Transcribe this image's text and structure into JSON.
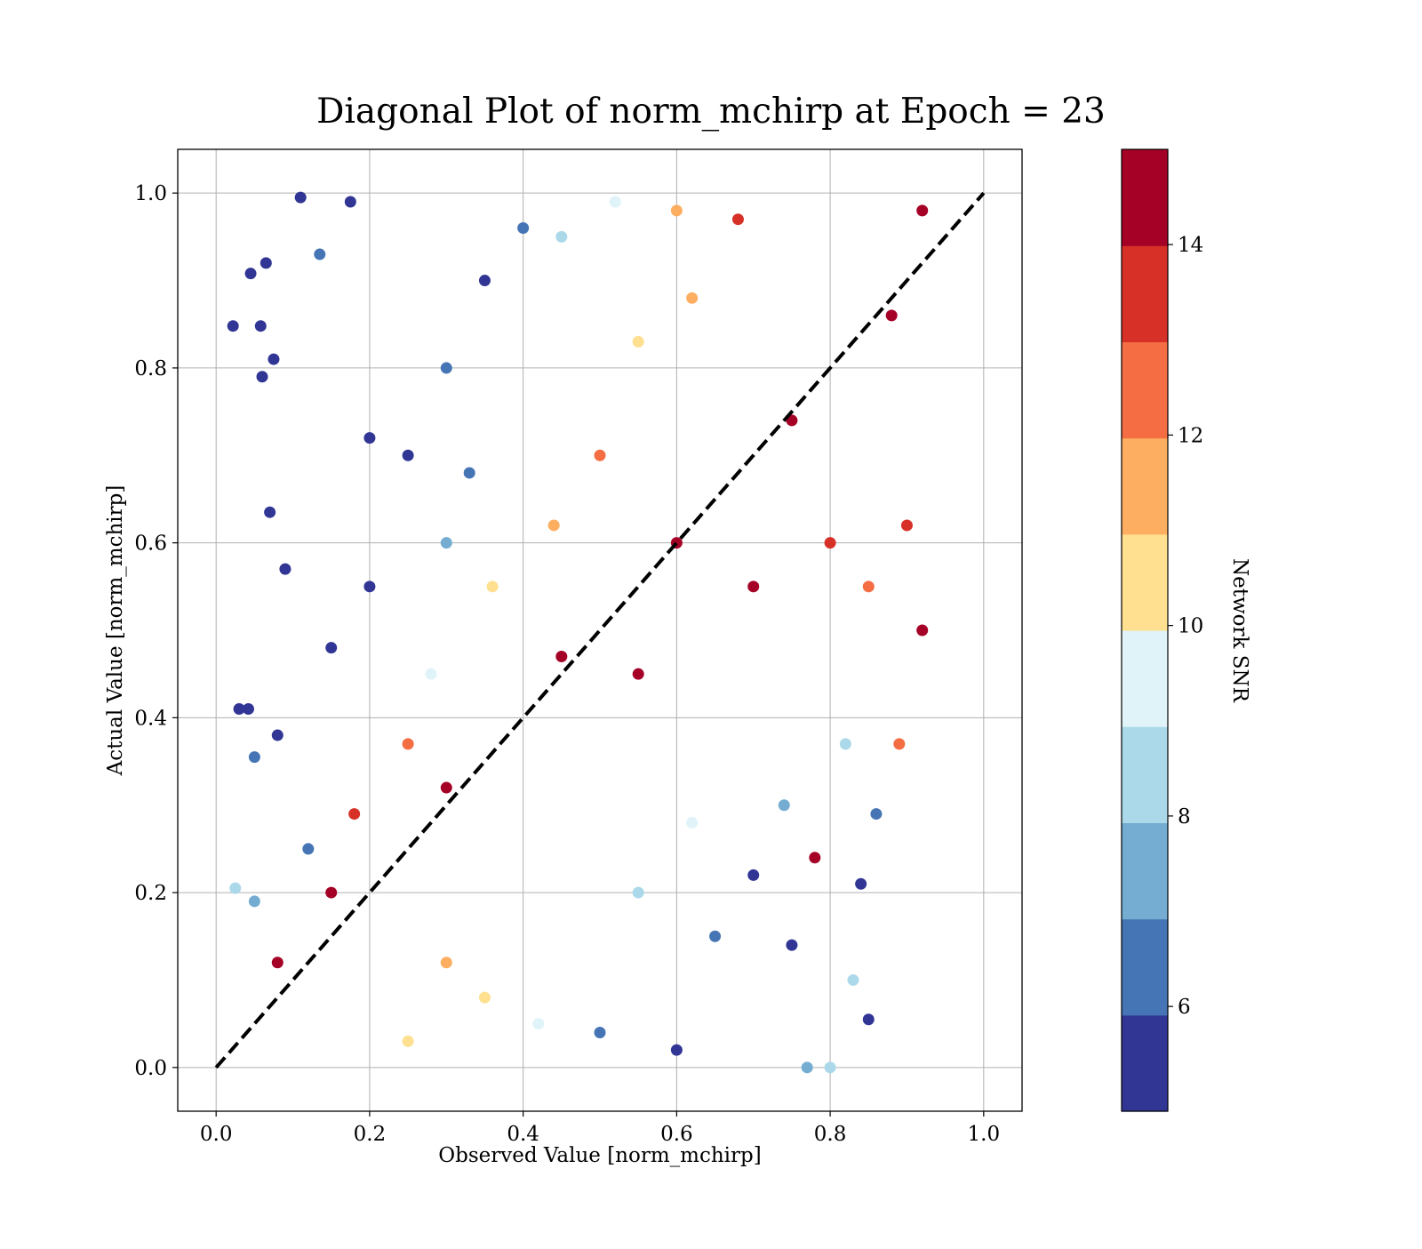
{
  "chart_data": {
    "type": "scatter",
    "title": "Diagonal Plot of norm_mchirp at Epoch = 23",
    "xlabel": "Observed Value [norm_mchirp]",
    "ylabel": "Actual Value [norm_mchirp]",
    "xlim": [
      -0.05,
      1.05
    ],
    "ylim": [
      -0.05,
      1.05
    ],
    "x_ticks": [
      0.0,
      0.2,
      0.4,
      0.6,
      0.8,
      1.0
    ],
    "x_tick_labels": [
      "0.0",
      "0.2",
      "0.4",
      "0.6",
      "0.8",
      "1.0"
    ],
    "y_ticks": [
      0.0,
      0.2,
      0.4,
      0.6,
      0.8,
      1.0
    ],
    "y_tick_labels": [
      "0.0",
      "0.2",
      "0.4",
      "0.6",
      "0.8",
      "1.0"
    ],
    "grid": true,
    "reference_line": {
      "x": [
        0.0,
        1.0
      ],
      "y": [
        0.0,
        1.0
      ],
      "style": "dashed",
      "color": "#000000"
    },
    "colorbar": {
      "label": "Network SNR",
      "range": [
        4.9,
        15.0
      ],
      "ticks": [
        6,
        8,
        10,
        12,
        14
      ],
      "tick_labels": [
        "6",
        "8",
        "10",
        "12",
        "14"
      ],
      "colors": [
        "#313695",
        "#4575b4",
        "#74add1",
        "#abd9e9",
        "#e0f3f8",
        "#fee090",
        "#fdae61",
        "#f46d43",
        "#d73027",
        "#a50026"
      ]
    },
    "series": [
      {
        "color_by": "Network SNR",
        "points": [
          {
            "x": 0.022,
            "y": 0.848,
            "snr": 5.2
          },
          {
            "x": 0.045,
            "y": 0.908,
            "snr": 5.4
          },
          {
            "x": 0.058,
            "y": 0.848,
            "snr": 5.1
          },
          {
            "x": 0.065,
            "y": 0.92,
            "snr": 5.3
          },
          {
            "x": 0.11,
            "y": 0.995,
            "snr": 5.2
          },
          {
            "x": 0.135,
            "y": 0.93,
            "snr": 6.0
          },
          {
            "x": 0.175,
            "y": 0.99,
            "snr": 5.5
          },
          {
            "x": 0.075,
            "y": 0.81,
            "snr": 5.3
          },
          {
            "x": 0.06,
            "y": 0.79,
            "snr": 5.6
          },
          {
            "x": 0.07,
            "y": 0.635,
            "snr": 5.8
          },
          {
            "x": 0.09,
            "y": 0.57,
            "snr": 5.4
          },
          {
            "x": 0.03,
            "y": 0.41,
            "snr": 5.2
          },
          {
            "x": 0.042,
            "y": 0.41,
            "snr": 5.4
          },
          {
            "x": 0.08,
            "y": 0.38,
            "snr": 5.7
          },
          {
            "x": 0.025,
            "y": 0.205,
            "snr": 8.4
          },
          {
            "x": 0.05,
            "y": 0.355,
            "snr": 6.4
          },
          {
            "x": 0.05,
            "y": 0.19,
            "snr": 7.2
          },
          {
            "x": 0.12,
            "y": 0.25,
            "snr": 6.0
          },
          {
            "x": 0.15,
            "y": 0.48,
            "snr": 5.5
          },
          {
            "x": 0.2,
            "y": 0.55,
            "snr": 5.8
          },
          {
            "x": 0.25,
            "y": 0.7,
            "snr": 5.3
          },
          {
            "x": 0.3,
            "y": 0.8,
            "snr": 6.2
          },
          {
            "x": 0.35,
            "y": 0.9,
            "snr": 5.7
          },
          {
            "x": 0.4,
            "y": 0.96,
            "snr": 6.8
          },
          {
            "x": 0.45,
            "y": 0.95,
            "snr": 8.8
          },
          {
            "x": 0.52,
            "y": 0.99,
            "snr": 9.8
          },
          {
            "x": 0.6,
            "y": 0.98,
            "snr": 11.5
          },
          {
            "x": 0.68,
            "y": 0.97,
            "snr": 13.0
          },
          {
            "x": 0.3,
            "y": 0.6,
            "snr": 7.0
          },
          {
            "x": 0.33,
            "y": 0.68,
            "snr": 6.5
          },
          {
            "x": 0.2,
            "y": 0.72,
            "snr": 5.6
          },
          {
            "x": 0.28,
            "y": 0.45,
            "snr": 9.2
          },
          {
            "x": 0.36,
            "y": 0.55,
            "snr": 10.6
          },
          {
            "x": 0.44,
            "y": 0.62,
            "snr": 11.8
          },
          {
            "x": 0.5,
            "y": 0.7,
            "snr": 12.6
          },
          {
            "x": 0.55,
            "y": 0.83,
            "snr": 10.4
          },
          {
            "x": 0.62,
            "y": 0.88,
            "snr": 11.2
          },
          {
            "x": 0.18,
            "y": 0.29,
            "snr": 13.5
          },
          {
            "x": 0.25,
            "y": 0.37,
            "snr": 12.8
          },
          {
            "x": 0.08,
            "y": 0.12,
            "snr": 14.5
          },
          {
            "x": 0.15,
            "y": 0.2,
            "snr": 14.8
          },
          {
            "x": 0.3,
            "y": 0.32,
            "snr": 14.9
          },
          {
            "x": 0.45,
            "y": 0.47,
            "snr": 14.9
          },
          {
            "x": 0.6,
            "y": 0.6,
            "snr": 14.9
          },
          {
            "x": 0.75,
            "y": 0.74,
            "snr": 14.9
          },
          {
            "x": 0.88,
            "y": 0.86,
            "snr": 14.9
          },
          {
            "x": 0.92,
            "y": 0.98,
            "snr": 14.9
          },
          {
            "x": 0.55,
            "y": 0.45,
            "snr": 14.7
          },
          {
            "x": 0.7,
            "y": 0.55,
            "snr": 14.2
          },
          {
            "x": 0.8,
            "y": 0.6,
            "snr": 13.4
          },
          {
            "x": 0.85,
            "y": 0.55,
            "snr": 12.5
          },
          {
            "x": 0.9,
            "y": 0.62,
            "snr": 13.8
          },
          {
            "x": 0.92,
            "y": 0.5,
            "snr": 14.9
          },
          {
            "x": 0.89,
            "y": 0.37,
            "snr": 12.8
          },
          {
            "x": 0.78,
            "y": 0.24,
            "snr": 14.8
          },
          {
            "x": 0.74,
            "y": 0.3,
            "snr": 7.6
          },
          {
            "x": 0.7,
            "y": 0.22,
            "snr": 5.8
          },
          {
            "x": 0.75,
            "y": 0.14,
            "snr": 5.2
          },
          {
            "x": 0.85,
            "y": 0.055,
            "snr": 5.3
          },
          {
            "x": 0.83,
            "y": 0.1,
            "snr": 8.6
          },
          {
            "x": 0.8,
            "y": 0.0,
            "snr": 8.3
          },
          {
            "x": 0.77,
            "y": 0.0,
            "snr": 7.9
          },
          {
            "x": 0.6,
            "y": 0.02,
            "snr": 5.5
          },
          {
            "x": 0.5,
            "y": 0.04,
            "snr": 6.8
          },
          {
            "x": 0.42,
            "y": 0.05,
            "snr": 9.5
          },
          {
            "x": 0.35,
            "y": 0.08,
            "snr": 10.5
          },
          {
            "x": 0.3,
            "y": 0.12,
            "snr": 11.3
          },
          {
            "x": 0.25,
            "y": 0.03,
            "snr": 10.2
          },
          {
            "x": 0.55,
            "y": 0.2,
            "snr": 8.2
          },
          {
            "x": 0.62,
            "y": 0.28,
            "snr": 9.6
          },
          {
            "x": 0.65,
            "y": 0.15,
            "snr": 6.4
          },
          {
            "x": 0.82,
            "y": 0.37,
            "snr": 8.0
          },
          {
            "x": 0.86,
            "y": 0.29,
            "snr": 6.6
          },
          {
            "x": 0.84,
            "y": 0.21,
            "snr": 5.0
          }
        ]
      }
    ]
  }
}
